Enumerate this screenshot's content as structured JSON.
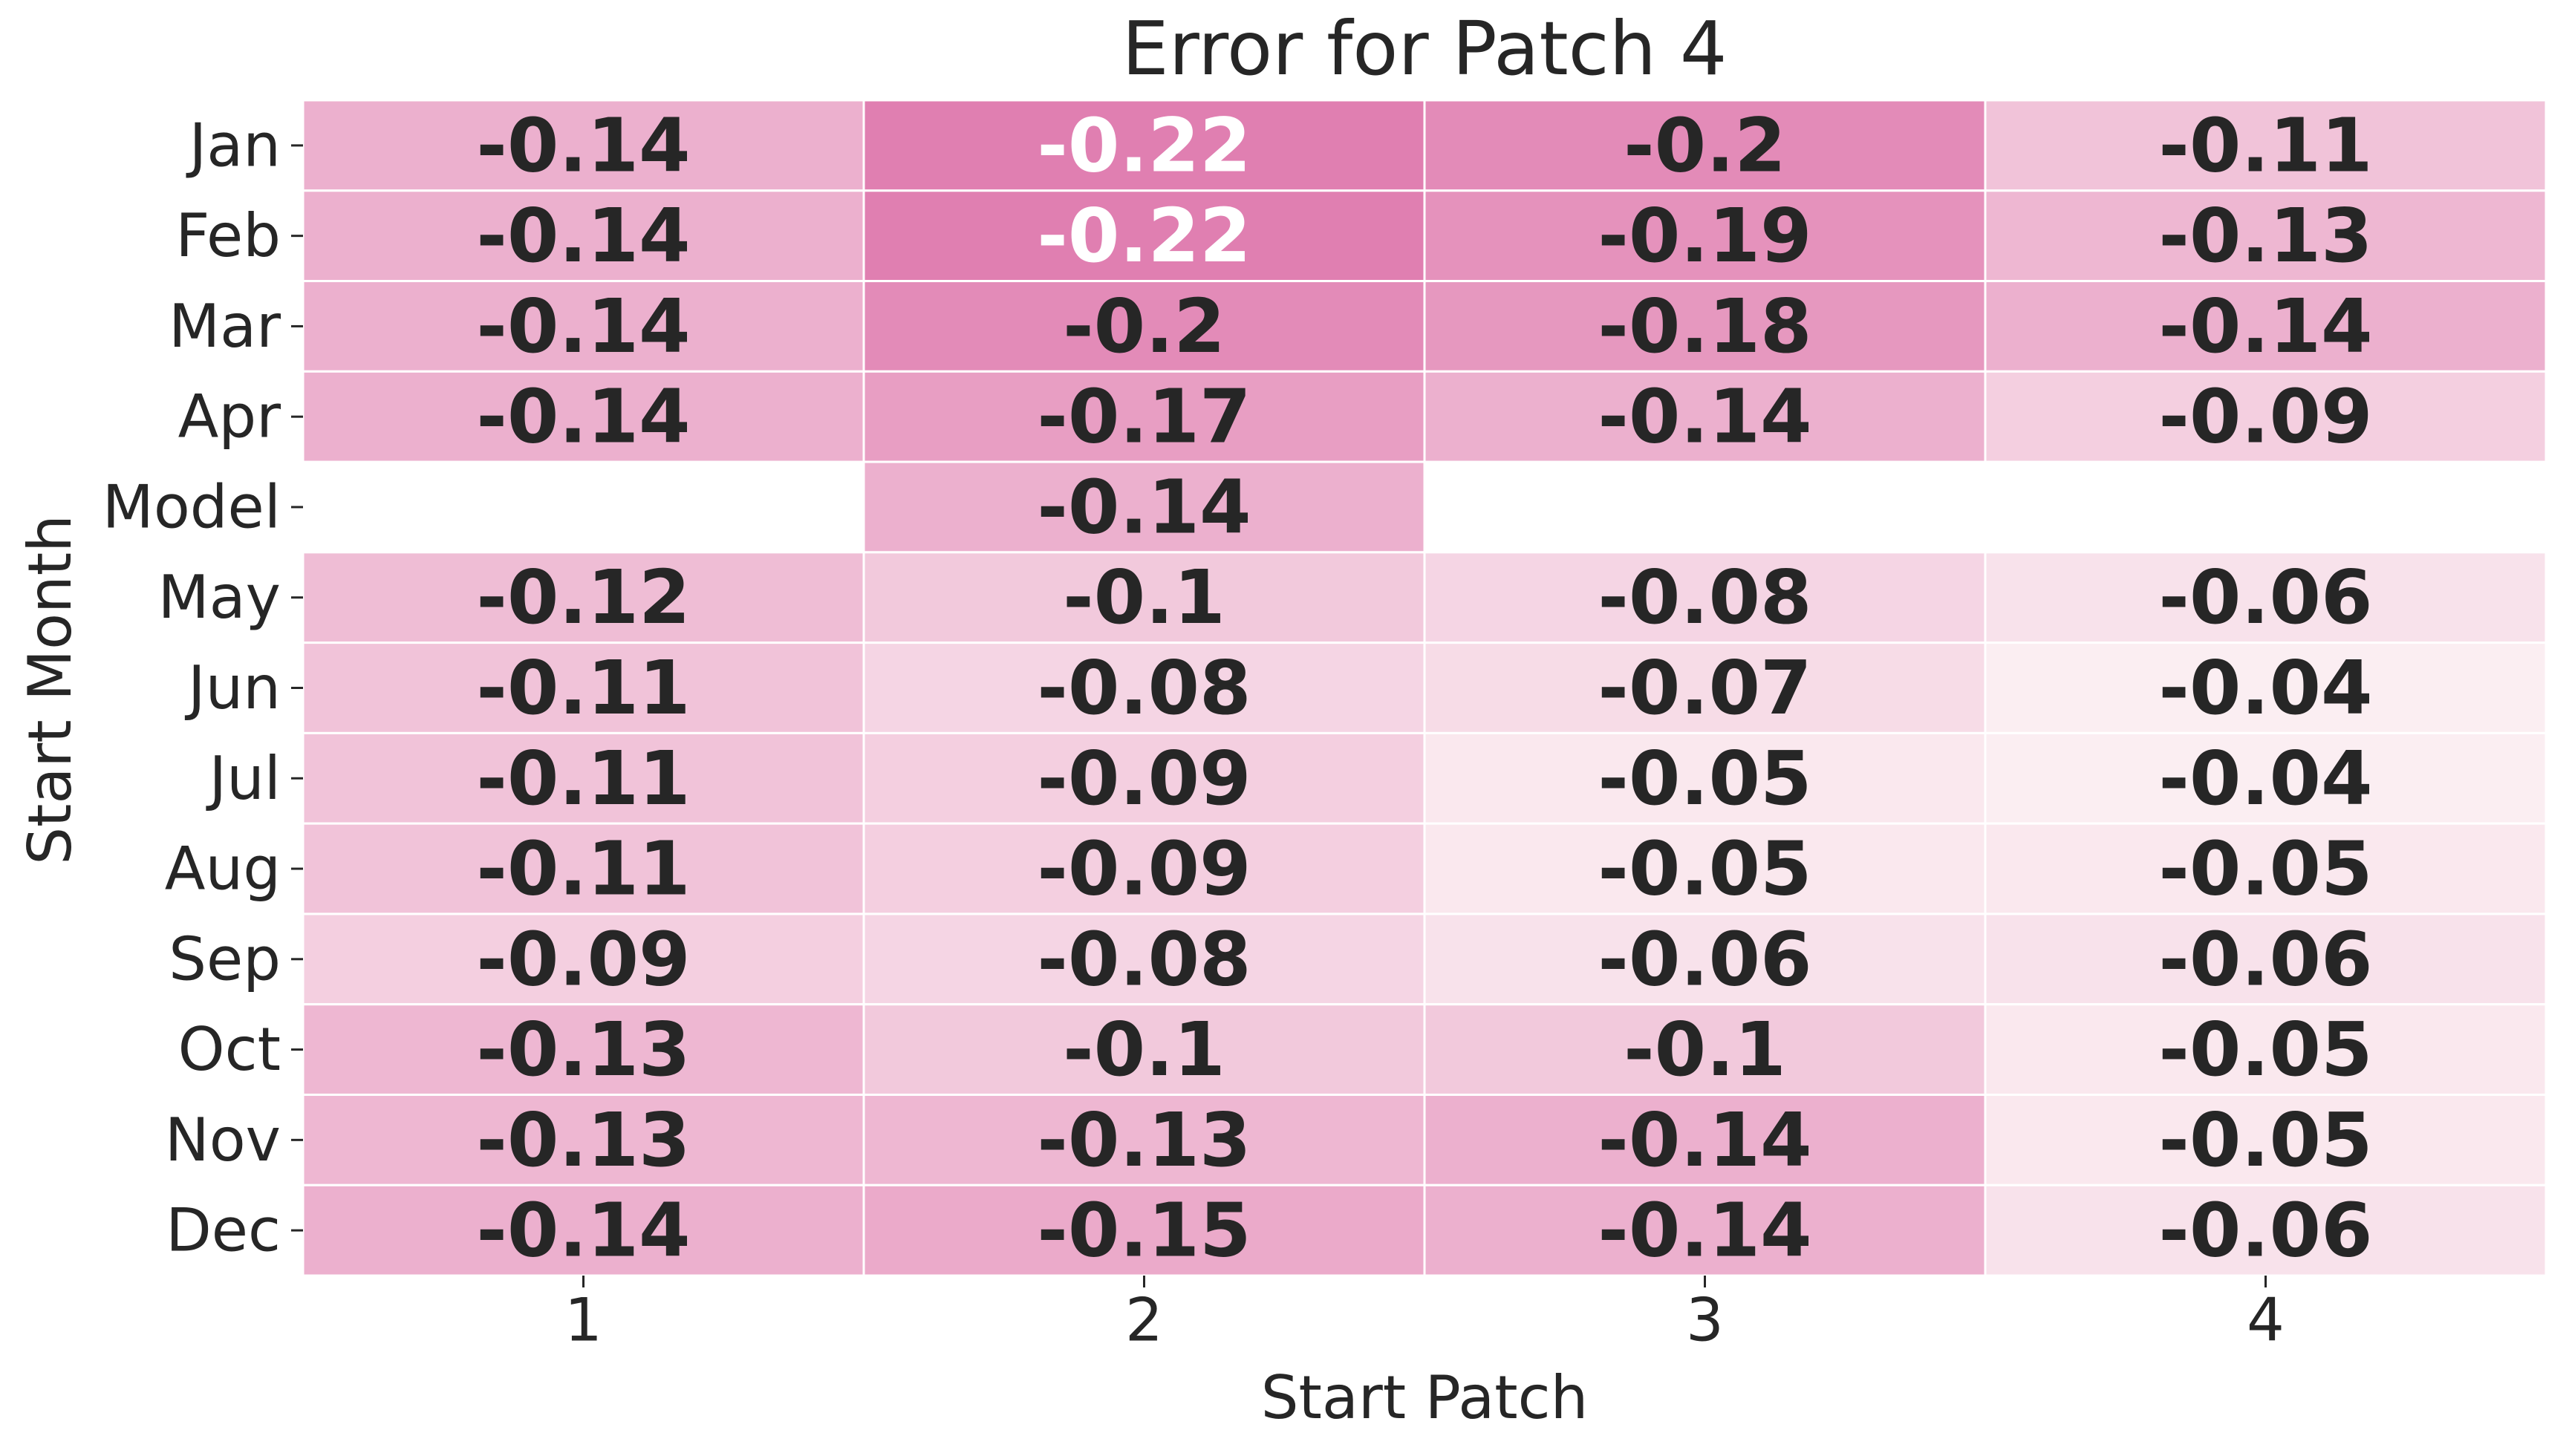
{
  "chart_data": {
    "type": "heatmap",
    "title": "Error for Patch 4",
    "xlabel": "Start Patch",
    "ylabel": "Start Month",
    "x_categories": [
      "1",
      "2",
      "3",
      "4"
    ],
    "y_categories": [
      "Jan",
      "Feb",
      "Mar",
      "Apr",
      "Model",
      "May",
      "Jun",
      "Jul",
      "Aug",
      "Sep",
      "Oct",
      "Nov",
      "Dec"
    ],
    "values": [
      [
        -0.14,
        -0.22,
        -0.2,
        -0.11
      ],
      [
        -0.14,
        -0.22,
        -0.19,
        -0.13
      ],
      [
        -0.14,
        -0.2,
        -0.18,
        -0.14
      ],
      [
        -0.14,
        -0.17,
        -0.14,
        -0.09
      ],
      [
        null,
        -0.14,
        null,
        null
      ],
      [
        -0.12,
        -0.1,
        -0.08,
        -0.06
      ],
      [
        -0.11,
        -0.08,
        -0.07,
        -0.04
      ],
      [
        -0.11,
        -0.09,
        -0.05,
        -0.04
      ],
      [
        -0.11,
        -0.09,
        -0.05,
        -0.05
      ],
      [
        -0.09,
        -0.08,
        -0.06,
        -0.06
      ],
      [
        -0.13,
        -0.1,
        -0.1,
        -0.05
      ],
      [
        -0.13,
        -0.13,
        -0.14,
        -0.05
      ],
      [
        -0.14,
        -0.15,
        -0.14,
        -0.06
      ]
    ],
    "value_labels": [
      [
        "-0.14",
        "-0.22",
        "-0.2",
        "-0.11"
      ],
      [
        "-0.14",
        "-0.22",
        "-0.19",
        "-0.13"
      ],
      [
        "-0.14",
        "-0.2",
        "-0.18",
        "-0.14"
      ],
      [
        "-0.14",
        "-0.17",
        "-0.14",
        "-0.09"
      ],
      [
        null,
        "-0.14",
        null,
        null
      ],
      [
        "-0.12",
        "-0.1",
        "-0.08",
        "-0.06"
      ],
      [
        "-0.11",
        "-0.08",
        "-0.07",
        "-0.04"
      ],
      [
        "-0.11",
        "-0.09",
        "-0.05",
        "-0.04"
      ],
      [
        "-0.11",
        "-0.09",
        "-0.05",
        "-0.05"
      ],
      [
        "-0.09",
        "-0.08",
        "-0.06",
        "-0.06"
      ],
      [
        "-0.13",
        "-0.1",
        "-0.1",
        "-0.05"
      ],
      [
        "-0.13",
        "-0.13",
        "-0.14",
        "-0.05"
      ],
      [
        "-0.14",
        "-0.15",
        "-0.14",
        "-0.06"
      ]
    ],
    "colormap": {
      "low_color": "#e07fb1",
      "high_color": "#fbeef2",
      "value_range": [
        -0.22,
        -0.04
      ]
    },
    "annotation_dark_color": "#262626",
    "annotation_light_color": "#ffffff",
    "grid": false,
    "legend": "none"
  }
}
